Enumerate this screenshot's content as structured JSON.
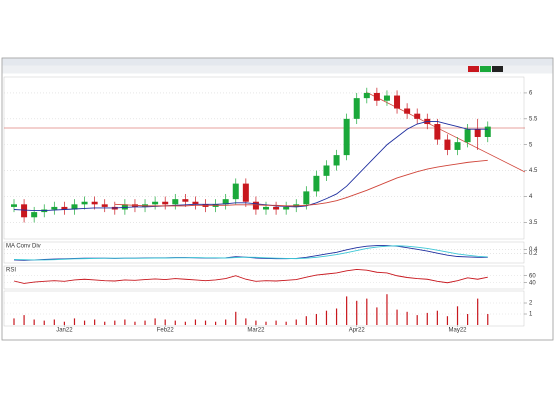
{
  "chart_data": [
    {
      "type": "candlestick",
      "categories": [
        null,
        null,
        null,
        null,
        null,
        "Jan22",
        null,
        null,
        null,
        null,
        null,
        null,
        null,
        null,
        null,
        "Feb22",
        null,
        null,
        null,
        null,
        null,
        null,
        null,
        null,
        "Mar22",
        null,
        null,
        null,
        null,
        null,
        null,
        null,
        null,
        null,
        "Apr22",
        null,
        null,
        null,
        null,
        null,
        null,
        null,
        null,
        null,
        "May22",
        null,
        null,
        null
      ],
      "open": [
        3.8,
        3.85,
        3.6,
        3.7,
        3.75,
        3.8,
        3.75,
        3.85,
        3.9,
        3.85,
        3.8,
        3.75,
        3.85,
        3.8,
        3.85,
        3.9,
        3.85,
        3.95,
        3.9,
        3.85,
        3.8,
        3.85,
        3.95,
        4.25,
        3.9,
        3.75,
        3.8,
        3.75,
        3.8,
        3.85,
        4.1,
        4.4,
        4.6,
        4.8,
        5.5,
        5.9,
        6.0,
        5.85,
        5.95,
        5.7,
        5.6,
        5.5,
        5.4,
        5.1,
        4.9,
        5.05,
        5.3,
        5.15
      ],
      "high": [
        3.95,
        3.95,
        3.8,
        3.85,
        3.9,
        3.9,
        3.95,
        4.0,
        4.0,
        3.95,
        3.9,
        3.95,
        3.95,
        3.95,
        4.0,
        4.0,
        4.05,
        4.05,
        4.0,
        3.95,
        3.95,
        4.05,
        4.35,
        4.35,
        4.0,
        3.9,
        3.9,
        3.9,
        3.95,
        4.2,
        4.5,
        4.7,
        4.9,
        5.6,
        6.0,
        6.1,
        6.1,
        6.05,
        6.05,
        5.8,
        5.7,
        5.6,
        5.5,
        5.2,
        5.15,
        5.4,
        5.5,
        5.45
      ],
      "low": [
        3.7,
        3.5,
        3.5,
        3.6,
        3.65,
        3.65,
        3.65,
        3.75,
        3.75,
        3.7,
        3.65,
        3.65,
        3.7,
        3.7,
        3.75,
        3.75,
        3.75,
        3.8,
        3.75,
        3.7,
        3.7,
        3.75,
        3.85,
        3.8,
        3.65,
        3.65,
        3.65,
        3.65,
        3.7,
        3.75,
        4.0,
        4.3,
        4.5,
        4.7,
        5.4,
        5.8,
        5.75,
        5.75,
        5.6,
        5.5,
        5.4,
        5.3,
        5.0,
        4.8,
        4.8,
        4.95,
        4.9,
        5.05
      ],
      "close": [
        3.85,
        3.6,
        3.7,
        3.75,
        3.8,
        3.75,
        3.85,
        3.9,
        3.85,
        3.8,
        3.75,
        3.85,
        3.8,
        3.85,
        3.9,
        3.85,
        3.95,
        3.9,
        3.85,
        3.8,
        3.85,
        3.95,
        4.25,
        3.9,
        3.75,
        3.8,
        3.75,
        3.8,
        3.85,
        4.1,
        4.4,
        4.6,
        4.8,
        5.5,
        5.9,
        6.0,
        5.85,
        5.95,
        5.7,
        5.6,
        5.5,
        5.4,
        5.1,
        4.9,
        5.05,
        5.3,
        5.15,
        5.35
      ],
      "up_color": "#1aa83a",
      "down_color": "#c8171e",
      "series": [
        {
          "color": "#1f2f9f",
          "values": [
            3.75,
            3.74,
            3.73,
            3.73,
            3.74,
            3.75,
            3.76,
            3.77,
            3.78,
            3.78,
            3.78,
            3.79,
            3.8,
            3.8,
            3.81,
            3.82,
            3.83,
            3.84,
            3.85,
            3.85,
            3.85,
            3.86,
            3.88,
            3.88,
            3.86,
            3.84,
            3.82,
            3.81,
            3.8,
            3.82,
            3.88,
            3.96,
            4.05,
            4.2,
            4.4,
            4.6,
            4.8,
            5.0,
            5.15,
            5.3,
            5.4,
            5.45,
            5.45,
            5.4,
            5.35,
            5.3,
            5.3,
            5.3
          ]
        },
        {
          "color": "#d0453a",
          "values": [
            null,
            null,
            null,
            null,
            null,
            null,
            null,
            null,
            null,
            null,
            3.85,
            3.84,
            3.83,
            3.82,
            3.82,
            3.82,
            3.82,
            3.82,
            3.83,
            3.83,
            3.83,
            3.83,
            3.84,
            3.84,
            3.84,
            3.83,
            3.83,
            3.82,
            3.82,
            3.83,
            3.85,
            3.88,
            3.92,
            3.98,
            4.05,
            4.12,
            4.2,
            4.28,
            4.36,
            4.42,
            4.48,
            4.53,
            4.57,
            4.6,
            4.63,
            4.66,
            4.68,
            4.7
          ]
        }
      ],
      "ylim": [
        3.2,
        6.25
      ],
      "yticks": [
        3.5,
        4,
        4.5,
        5,
        5.5,
        6
      ],
      "grid": true
    },
    {
      "type": "line",
      "title": "MA Conv Div",
      "series": [
        {
          "color": "#1f2f9f",
          "values": [
            -0.1,
            -0.12,
            -0.1,
            -0.08,
            -0.06,
            -0.05,
            -0.03,
            -0.02,
            -0.02,
            -0.02,
            -0.03,
            -0.02,
            -0.02,
            -0.01,
            0,
            0,
            0.01,
            0.01,
            0,
            -0.01,
            -0.01,
            0,
            0.05,
            0.03,
            -0.01,
            -0.03,
            -0.04,
            -0.04,
            -0.03,
            0.02,
            0.1,
            0.18,
            0.26,
            0.38,
            0.48,
            0.55,
            0.58,
            0.58,
            0.55,
            0.48,
            0.4,
            0.32,
            0.22,
            0.12,
            0.06,
            0.04,
            0.02,
            0.02
          ]
        },
        {
          "color": "#3cc7d6",
          "values": [
            -0.08,
            -0.09,
            -0.1,
            -0.1,
            -0.09,
            -0.07,
            -0.05,
            -0.04,
            -0.03,
            -0.02,
            -0.02,
            -0.02,
            -0.02,
            -0.02,
            -0.01,
            -0.01,
            0,
            0,
            0.01,
            0,
            0,
            -0.01,
            0.01,
            0.03,
            0.02,
            0,
            -0.02,
            -0.03,
            -0.04,
            -0.02,
            0.02,
            0.08,
            0.15,
            0.24,
            0.34,
            0.44,
            0.51,
            0.55,
            0.57,
            0.55,
            0.5,
            0.44,
            0.36,
            0.27,
            0.18,
            0.12,
            0.07,
            0.04
          ]
        }
      ],
      "ylim": [
        -0.2,
        0.7
      ],
      "yticks": [
        0.2,
        0.4
      ],
      "grid": true
    },
    {
      "type": "line",
      "title": "RSI",
      "series": [
        {
          "color": "#c8171e",
          "values": [
            45,
            38,
            42,
            44,
            46,
            44,
            48,
            50,
            48,
            46,
            45,
            48,
            47,
            49,
            51,
            49,
            52,
            50,
            48,
            46,
            48,
            52,
            60,
            50,
            44,
            46,
            45,
            47,
            49,
            56,
            62,
            65,
            68,
            74,
            78,
            76,
            70,
            68,
            60,
            55,
            52,
            50,
            44,
            40,
            46,
            54,
            50,
            56
          ]
        }
      ],
      "ylim": [
        25,
        85
      ],
      "yticks": [
        40,
        60
      ],
      "grid": true
    },
    {
      "type": "bar",
      "values": [
        0.6,
        0.9,
        0.5,
        0.4,
        0.5,
        0.3,
        0.6,
        0.4,
        0.5,
        0.3,
        0.4,
        0.5,
        0.3,
        0.4,
        0.6,
        0.5,
        0.4,
        0.3,
        0.5,
        0.4,
        0.3,
        0.5,
        1.2,
        0.6,
        0.4,
        0.3,
        0.4,
        0.3,
        0.5,
        0.8,
        1.0,
        1.3,
        1.5,
        2.6,
        2.2,
        2.4,
        1.6,
        2.8,
        1.4,
        1.2,
        0.9,
        1.1,
        1.3,
        0.8,
        1.7,
        1.0,
        2.4,
        1.0
      ],
      "color": "#c8171e",
      "ylim": [
        0,
        3
      ],
      "yticks": [
        1,
        2
      ],
      "grid": true
    }
  ]
}
